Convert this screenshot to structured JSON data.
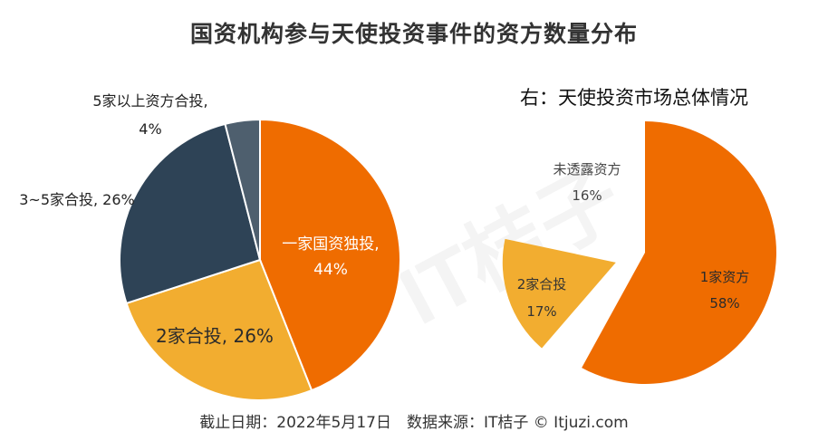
{
  "title": "国资机构参与天使投资事件的资方数量分布",
  "footer": "截止日期：2022年5月17日　数据来源：IT桔子 © Itjuzi.com",
  "watermark": "IT桔子",
  "chart_data": [
    {
      "type": "pie",
      "name": "left",
      "title": "",
      "slices": [
        {
          "label": "一家国资独投,",
          "value": 44,
          "pct": "44%",
          "color": "#ef6c00"
        },
        {
          "label": "2家合投, 26%",
          "value": 26,
          "pct": "",
          "color": "#f2ad30"
        },
        {
          "label": "3~5家合投, 26%",
          "value": 26,
          "pct": "",
          "color": "#2e4356"
        },
        {
          "label": "5家以上资方合投,",
          "value": 4,
          "pct": "4%",
          "color": "#4e5f6e"
        }
      ]
    },
    {
      "type": "pie",
      "name": "right",
      "title": "右：天使投资市场总体情况",
      "slices": [
        {
          "label": "1家资方",
          "value": 58,
          "pct": "58%",
          "color": "#ef6c00"
        },
        {
          "label": "2家合投",
          "value": 17,
          "pct": "17%",
          "color": "#f2ad30"
        },
        {
          "label": "未透露资方",
          "value": 16,
          "pct": "16%",
          "color": "#ffffff"
        }
      ]
    }
  ]
}
